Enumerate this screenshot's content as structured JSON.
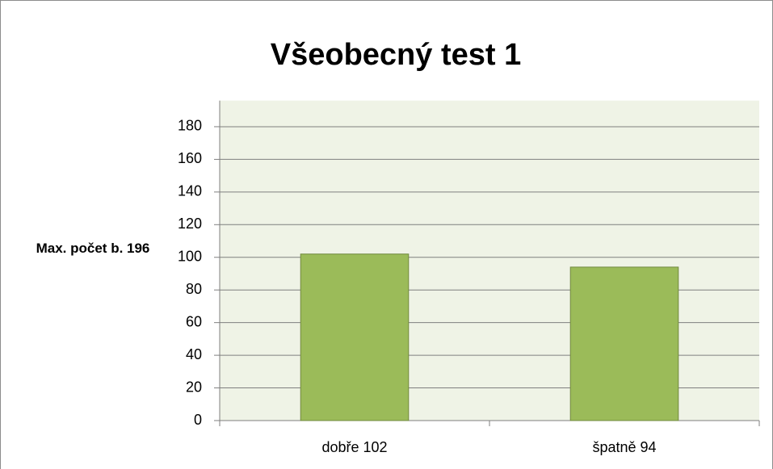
{
  "chart_data": {
    "type": "bar",
    "title": "Všeobecný test 1",
    "ylabel": "Max. počet b. 196",
    "categories": [
      "dobře 102",
      "špatně 94"
    ],
    "values": [
      102,
      94
    ],
    "color": "#9bbb59",
    "ylim": [
      0,
      196
    ],
    "yticks": [
      0,
      20,
      40,
      60,
      80,
      100,
      120,
      140,
      160,
      180
    ],
    "grid": true
  }
}
